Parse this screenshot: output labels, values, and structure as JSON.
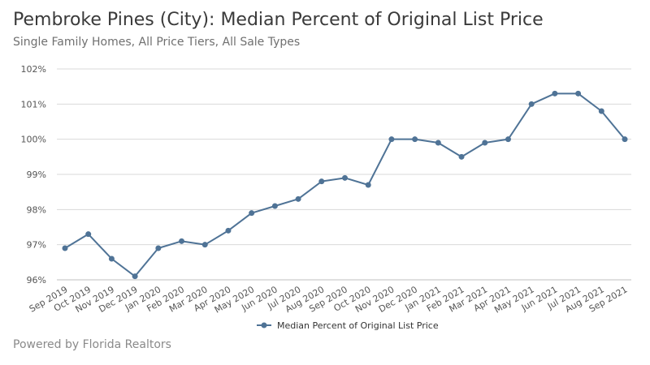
{
  "header": {
    "title": "Pembroke Pines (City): Median Percent of Original List Price",
    "subtitle": "Single Family Homes, All Price Tiers, All Sale Types"
  },
  "footer": {
    "text": "Powered by Florida Realtors"
  },
  "colors": {
    "series": "#4f7396",
    "grid": "#d9d9d9",
    "axis": "#bfbfbf"
  },
  "chart_data": {
    "type": "line",
    "title": "",
    "xlabel": "",
    "ylabel": "",
    "categories": [
      "Sep 2019",
      "Oct 2019",
      "Nov 2019",
      "Dec 2019",
      "Jan 2020",
      "Feb 2020",
      "Mar 2020",
      "Apr 2020",
      "May 2020",
      "Jun 2020",
      "Jul 2020",
      "Aug 2020",
      "Sep 2020",
      "Oct 2020",
      "Nov 2020",
      "Dec 2020",
      "Jan 2021",
      "Feb 2021",
      "Mar 2021",
      "Apr 2021",
      "May 2021",
      "Jun 2021",
      "Jul 2021",
      "Aug 2021",
      "Sep 2021"
    ],
    "series": [
      {
        "name": "Median Percent of Original List Price",
        "values": [
          96.9,
          97.3,
          96.6,
          96.1,
          96.9,
          97.1,
          97.0,
          97.4,
          97.9,
          98.1,
          98.3,
          98.8,
          98.9,
          98.7,
          100.0,
          100.0,
          99.9,
          99.5,
          99.9,
          100.0,
          101.0,
          101.3,
          101.3,
          100.8,
          100.0
        ]
      }
    ],
    "ylim": [
      96,
      102
    ],
    "yticks": [
      96,
      97,
      98,
      99,
      100,
      101,
      102
    ],
    "ytick_labels": [
      "96%",
      "97%",
      "98%",
      "99%",
      "100%",
      "101%",
      "102%"
    ],
    "grid": true,
    "legend_position": "bottom-center"
  }
}
